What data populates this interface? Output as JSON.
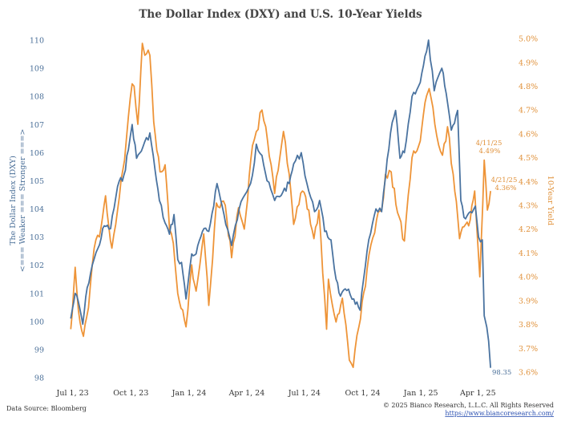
{
  "chart_data": {
    "type": "line",
    "title": "The Dollar Index (DXY)  and U.S. 10-Year Yields",
    "ylabel_left": "The Dollar Index (DXY)",
    "ylabel_left_sub": "<=== Weaker === Stronger ===>",
    "ylabel_right": "10-Year Yield",
    "ylim_left": [
      98,
      110
    ],
    "ylim_right": [
      3.6,
      5.0
    ],
    "y_ticks_left": [
      "98",
      "99",
      "100",
      "101",
      "102",
      "103",
      "104",
      "105",
      "106",
      "107",
      "108",
      "109",
      "110"
    ],
    "y_ticks_right": [
      "3.6%",
      "3.7%",
      "3.8%",
      "3.9%",
      "4.0%",
      "4.1%",
      "4.2%",
      "4.3%",
      "4.4%",
      "4.5%",
      "4.6%",
      "4.7%",
      "4.8%",
      "4.9%",
      "5.0%"
    ],
    "x_ticks": [
      "Jul 1, 23",
      "Oct 1, 23",
      "Jan 1, 24",
      "Apr 1, 24",
      "Jul 1, 24",
      "Oct 1, 24",
      "Jan 1, 25",
      "Apr 1, 25"
    ],
    "grid": false,
    "series": [
      {
        "name": "The Dollar Index (DXY)",
        "color": "#4a73a0",
        "axis": "left",
        "points": [
          [
            "2023-06-28",
            100.1
          ],
          [
            "2023-07-05",
            101.0
          ],
          [
            "2023-07-12",
            100.5
          ],
          [
            "2023-07-17",
            99.9
          ],
          [
            "2023-07-24",
            101.2
          ],
          [
            "2023-08-01",
            102.0
          ],
          [
            "2023-08-10",
            102.6
          ],
          [
            "2023-08-20",
            103.4
          ],
          [
            "2023-08-30",
            103.3
          ],
          [
            "2023-09-10",
            104.8
          ],
          [
            "2023-09-20",
            105.2
          ],
          [
            "2023-09-27",
            106.1
          ],
          [
            "2023-10-03",
            107.0
          ],
          [
            "2023-10-10",
            105.8
          ],
          [
            "2023-10-20",
            106.2
          ],
          [
            "2023-10-31",
            106.7
          ],
          [
            "2023-11-08",
            105.4
          ],
          [
            "2023-11-15",
            104.3
          ],
          [
            "2023-11-24",
            103.5
          ],
          [
            "2023-12-01",
            103.1
          ],
          [
            "2023-12-08",
            103.8
          ],
          [
            "2023-12-14",
            102.2
          ],
          [
            "2023-12-20",
            102.1
          ],
          [
            "2023-12-27",
            100.8
          ],
          [
            "2024-01-05",
            102.4
          ],
          [
            "2024-01-12",
            102.4
          ],
          [
            "2024-01-22",
            103.2
          ],
          [
            "2024-02-01",
            103.2
          ],
          [
            "2024-02-14",
            104.9
          ],
          [
            "2024-02-25",
            103.8
          ],
          [
            "2024-03-08",
            102.7
          ],
          [
            "2024-03-20",
            104.0
          ],
          [
            "2024-03-29",
            104.5
          ],
          [
            "2024-04-10",
            105.2
          ],
          [
            "2024-04-16",
            106.3
          ],
          [
            "2024-04-25",
            105.9
          ],
          [
            "2024-05-03",
            105.0
          ],
          [
            "2024-05-15",
            104.3
          ],
          [
            "2024-05-28",
            104.6
          ],
          [
            "2024-06-07",
            104.9
          ],
          [
            "2024-06-14",
            105.6
          ],
          [
            "2024-06-26",
            106.0
          ],
          [
            "2024-07-05",
            104.9
          ],
          [
            "2024-07-17",
            103.9
          ],
          [
            "2024-07-25",
            104.3
          ],
          [
            "2024-08-02",
            103.2
          ],
          [
            "2024-08-12",
            102.9
          ],
          [
            "2024-08-20",
            101.5
          ],
          [
            "2024-08-27",
            100.9
          ],
          [
            "2024-09-06",
            101.1
          ],
          [
            "2024-09-17",
            100.8
          ],
          [
            "2024-09-27",
            100.4
          ],
          [
            "2024-10-08",
            102.5
          ],
          [
            "2024-10-22",
            104.0
          ],
          [
            "2024-10-31",
            103.9
          ],
          [
            "2024-11-06",
            105.1
          ],
          [
            "2024-11-14",
            106.7
          ],
          [
            "2024-11-22",
            107.5
          ],
          [
            "2024-11-29",
            105.8
          ],
          [
            "2024-12-06",
            106.0
          ],
          [
            "2024-12-18",
            108.0
          ],
          [
            "2024-12-31",
            108.5
          ],
          [
            "2025-01-10",
            109.6
          ],
          [
            "2025-01-13",
            110.0
          ],
          [
            "2025-01-22",
            108.2
          ],
          [
            "2025-02-03",
            109.0
          ],
          [
            "2025-02-10",
            108.1
          ],
          [
            "2025-02-18",
            106.8
          ],
          [
            "2025-02-28",
            107.5
          ],
          [
            "2025-03-05",
            104.3
          ],
          [
            "2025-03-10",
            103.7
          ],
          [
            "2025-03-20",
            103.9
          ],
          [
            "2025-03-28",
            104.1
          ],
          [
            "2025-04-02",
            103.0
          ],
          [
            "2025-04-08",
            102.9
          ],
          [
            "2025-04-11",
            100.2
          ],
          [
            "2025-04-15",
            99.8
          ],
          [
            "2025-04-18",
            99.3
          ],
          [
            "2025-04-21",
            98.35
          ]
        ]
      },
      {
        "name": "10-Year Yield",
        "color": "#ee9438",
        "axis": "right",
        "points": [
          [
            "2023-06-28",
            3.78
          ],
          [
            "2023-07-05",
            4.04
          ],
          [
            "2023-07-10",
            3.86
          ],
          [
            "2023-07-18",
            3.75
          ],
          [
            "2023-07-26",
            3.87
          ],
          [
            "2023-08-04",
            4.12
          ],
          [
            "2023-08-15",
            4.21
          ],
          [
            "2023-08-22",
            4.34
          ],
          [
            "2023-09-01",
            4.12
          ],
          [
            "2023-09-10",
            4.28
          ],
          [
            "2023-09-21",
            4.49
          ],
          [
            "2023-10-03",
            4.81
          ],
          [
            "2023-10-06",
            4.8
          ],
          [
            "2023-10-12",
            4.64
          ],
          [
            "2023-10-19",
            4.98
          ],
          [
            "2023-10-23",
            4.93
          ],
          [
            "2023-10-31",
            4.93
          ],
          [
            "2023-11-06",
            4.65
          ],
          [
            "2023-11-16",
            4.44
          ],
          [
            "2023-11-24",
            4.47
          ],
          [
            "2023-12-01",
            4.2
          ],
          [
            "2023-12-07",
            4.14
          ],
          [
            "2023-12-14",
            3.93
          ],
          [
            "2023-12-27",
            3.79
          ],
          [
            "2024-01-05",
            4.05
          ],
          [
            "2024-01-12",
            3.94
          ],
          [
            "2024-01-24",
            4.18
          ],
          [
            "2024-02-01",
            3.88
          ],
          [
            "2024-02-13",
            4.31
          ],
          [
            "2024-02-27",
            4.3
          ],
          [
            "2024-03-08",
            4.08
          ],
          [
            "2024-03-19",
            4.29
          ],
          [
            "2024-03-28",
            4.2
          ],
          [
            "2024-04-10",
            4.55
          ],
          [
            "2024-04-25",
            4.7
          ],
          [
            "2024-05-01",
            4.63
          ],
          [
            "2024-05-15",
            4.35
          ],
          [
            "2024-05-29",
            4.61
          ],
          [
            "2024-06-07",
            4.43
          ],
          [
            "2024-06-14",
            4.22
          ],
          [
            "2024-06-28",
            4.36
          ],
          [
            "2024-07-08",
            4.28
          ],
          [
            "2024-07-16",
            4.16
          ],
          [
            "2024-07-24",
            4.28
          ],
          [
            "2024-08-05",
            3.78
          ],
          [
            "2024-08-08",
            3.99
          ],
          [
            "2024-08-20",
            3.81
          ],
          [
            "2024-08-30",
            3.91
          ],
          [
            "2024-09-10",
            3.65
          ],
          [
            "2024-09-16",
            3.62
          ],
          [
            "2024-09-25",
            3.79
          ],
          [
            "2024-10-08",
            4.03
          ],
          [
            "2024-10-23",
            4.24
          ],
          [
            "2024-10-31",
            4.28
          ],
          [
            "2024-11-06",
            4.43
          ],
          [
            "2024-11-15",
            4.44
          ],
          [
            "2024-11-25",
            4.27
          ],
          [
            "2024-12-06",
            4.15
          ],
          [
            "2024-12-18",
            4.5
          ],
          [
            "2024-12-31",
            4.57
          ],
          [
            "2025-01-10",
            4.76
          ],
          [
            "2025-01-14",
            4.79
          ],
          [
            "2025-01-23",
            4.64
          ],
          [
            "2025-02-04",
            4.51
          ],
          [
            "2025-02-12",
            4.63
          ],
          [
            "2025-02-21",
            4.43
          ],
          [
            "2025-03-03",
            4.16
          ],
          [
            "2025-03-10",
            4.21
          ],
          [
            "2025-03-20",
            4.24
          ],
          [
            "2025-03-27",
            4.36
          ],
          [
            "2025-04-04",
            4.0
          ],
          [
            "2025-04-11",
            4.49
          ],
          [
            "2025-04-16",
            4.28
          ],
          [
            "2025-04-21",
            4.36
          ]
        ]
      }
    ],
    "annotations": [
      {
        "date": "4/11/25",
        "value": "4.49%"
      },
      {
        "date": "4/21/25",
        "value": "4.36%"
      },
      {
        "value": "98.35"
      }
    ]
  },
  "footer": {
    "source": "Data Source: Bloomberg",
    "copyright": "© 2025 Bianco Research, L.L.C. All Rights Reserved",
    "url": "https://www.biancoresearch.com/"
  }
}
